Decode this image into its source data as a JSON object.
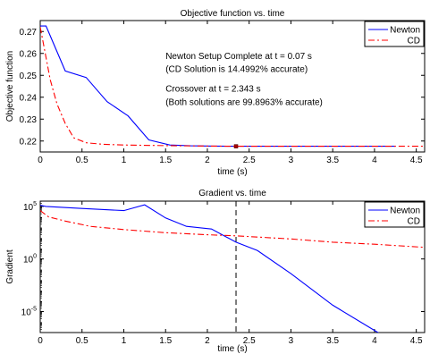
{
  "chart_data": [
    {
      "type": "line",
      "title": "Objective function vs. time",
      "xlabel": "time (s)",
      "ylabel": "Objective function",
      "xlim": [
        0,
        4.6
      ],
      "ylim": [
        0.215,
        0.275
      ],
      "xticks": [
        0,
        0.5,
        1,
        1.5,
        2,
        2.5,
        3,
        3.5,
        4,
        4.5
      ],
      "xtick_labels": [
        "0",
        "0.5",
        "1",
        "1.5",
        "2",
        "2.5",
        "3",
        "3.5",
        "4",
        "4.5"
      ],
      "yticks": [
        0.22,
        0.23,
        0.24,
        0.25,
        0.26,
        0.27
      ],
      "ytick_labels": [
        "0.22",
        "0.23",
        "0.24",
        "0.25",
        "0.26",
        "0.27"
      ],
      "legend": "top-right",
      "series": [
        {
          "name": "Newton",
          "color": "#0000ff",
          "style": "solid",
          "x": [
            0,
            0.07,
            0.3,
            0.55,
            0.8,
            1.05,
            1.3,
            1.55,
            1.8,
            2.05,
            2.343,
            2.6,
            3.0,
            3.5,
            4.0,
            4.25
          ],
          "y": [
            0.2725,
            0.2725,
            0.252,
            0.249,
            0.238,
            0.2315,
            0.2205,
            0.2182,
            0.2178,
            0.2177,
            0.2176,
            0.2176,
            0.2176,
            0.2176,
            0.2176,
            0.2176
          ]
        },
        {
          "name": "CD",
          "color": "#ff0000",
          "style": "dashdot",
          "x": [
            0,
            0.05,
            0.12,
            0.2,
            0.3,
            0.4,
            0.55,
            0.75,
            1.0,
            1.5,
            2.0,
            2.343,
            3.0,
            3.5,
            4.0,
            4.6
          ],
          "y": [
            0.272,
            0.262,
            0.248,
            0.237,
            0.228,
            0.2215,
            0.2192,
            0.2185,
            0.2182,
            0.2179,
            0.2177,
            0.2176,
            0.2176,
            0.2176,
            0.2176,
            0.2176
          ]
        }
      ],
      "marker": {
        "x": 2.343,
        "y": 0.2176,
        "color": "#aa0000"
      },
      "annotations": [
        {
          "text": "Newton Setup Complete at t = 0.07  s",
          "x": 1.5,
          "y": 0.2575
        },
        {
          "text": "(CD Solution is 14.4992% accurate)",
          "x": 1.5,
          "y": 0.2515
        },
        {
          "text": "Crossover at t = 2.343 s",
          "x": 1.5,
          "y": 0.2425
        },
        {
          "text": "(Both solutions are 99.8963% accurate)",
          "x": 1.5,
          "y": 0.2365
        }
      ]
    },
    {
      "type": "line",
      "title": "Gradient vs. time",
      "xlabel": "time (s)",
      "ylabel": "Gradient",
      "yscale": "log",
      "xlim": [
        0,
        4.6
      ],
      "ylim_log10": [
        -7,
        5.5
      ],
      "xticks": [
        0,
        0.5,
        1,
        1.5,
        2,
        2.5,
        3,
        3.5,
        4,
        4.5
      ],
      "xtick_labels": [
        "0",
        "0.5",
        "1",
        "1.5",
        "2",
        "2.5",
        "3",
        "3.5",
        "4",
        "4.5"
      ],
      "yticks_log10": [
        5,
        0,
        -5
      ],
      "ytick_labels": [
        {
          "base": "10",
          "exp": "5"
        },
        {
          "base": "10",
          "exp": "0"
        },
        {
          "base": "10",
          "exp": "-5"
        }
      ],
      "legend": "top-right",
      "series": [
        {
          "name": "Newton",
          "color": "#0000ff",
          "style": "solid",
          "x": [
            0,
            0.07,
            0.5,
            1.0,
            1.25,
            1.5,
            1.75,
            2.05,
            2.343,
            2.6,
            3.0,
            3.5,
            4.0,
            4.25
          ],
          "log10_y": [
            5.1,
            5.0,
            4.8,
            4.6,
            5.15,
            3.9,
            3.1,
            2.85,
            1.6,
            0.8,
            -1.4,
            -4.4,
            -6.8,
            -8.0
          ]
        },
        {
          "name": "CD",
          "color": "#ff0000",
          "style": "dashdot",
          "x": [
            0,
            0.1,
            0.3,
            0.6,
            1.0,
            1.5,
            2.0,
            2.343,
            3.0,
            3.5,
            4.0,
            4.6
          ],
          "log10_y": [
            4.6,
            4.0,
            3.6,
            3.1,
            2.8,
            2.5,
            2.3,
            2.2,
            1.9,
            1.6,
            1.4,
            1.1
          ]
        }
      ],
      "vline": {
        "x": 2.343,
        "color": "#000000",
        "style": "dashed"
      }
    }
  ]
}
